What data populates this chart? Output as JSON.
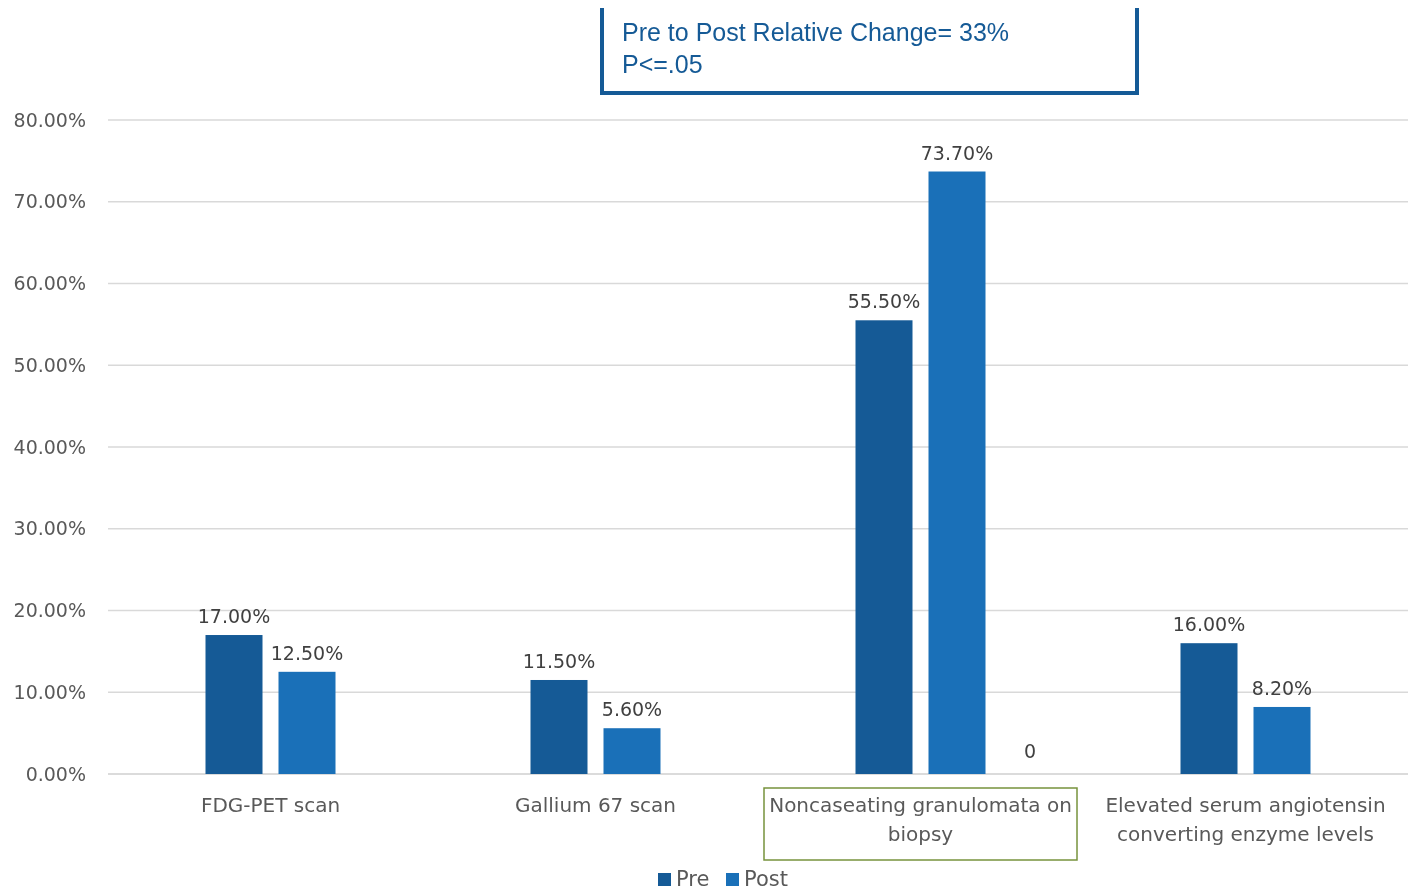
{
  "chart_data": {
    "type": "bar",
    "categories": [
      "FDG-PET scan",
      "Gallium 67 scan",
      "Noncaseating granulomata on biopsy",
      "Elevated serum angiotensin converting enzyme levels"
    ],
    "series": [
      {
        "name": "Pre",
        "color": "#155a96",
        "values": [
          17.0,
          11.5,
          55.5,
          16.0
        ],
        "value_labels": [
          "17.00%",
          "11.50%",
          "55.50%",
          "16.00%"
        ]
      },
      {
        "name": "Post",
        "color": "#1a70b8",
        "values": [
          12.5,
          5.6,
          73.7,
          8.2
        ],
        "value_labels": [
          "12.50%",
          "5.60%",
          "73.70%",
          "8.20%"
        ]
      }
    ],
    "ylim": [
      0,
      80
    ],
    "yticks": [
      {
        "value": 0,
        "label": "0.00%"
      },
      {
        "value": 10,
        "label": "10.00%"
      },
      {
        "value": 20,
        "label": "20.00%"
      },
      {
        "value": 30,
        "label": "30.00%"
      },
      {
        "value": 40,
        "label": "40.00%"
      },
      {
        "value": 50,
        "label": "50.00%"
      },
      {
        "value": 60,
        "label": "60.00%"
      },
      {
        "value": 70,
        "label": "70.00%"
      },
      {
        "value": 80,
        "label": "80.00%"
      }
    ],
    "grid": "y",
    "legend": "bottom",
    "annotations": [
      "Pre to Post Relative Change= 33%\nP<=.05",
      "0"
    ]
  }
}
